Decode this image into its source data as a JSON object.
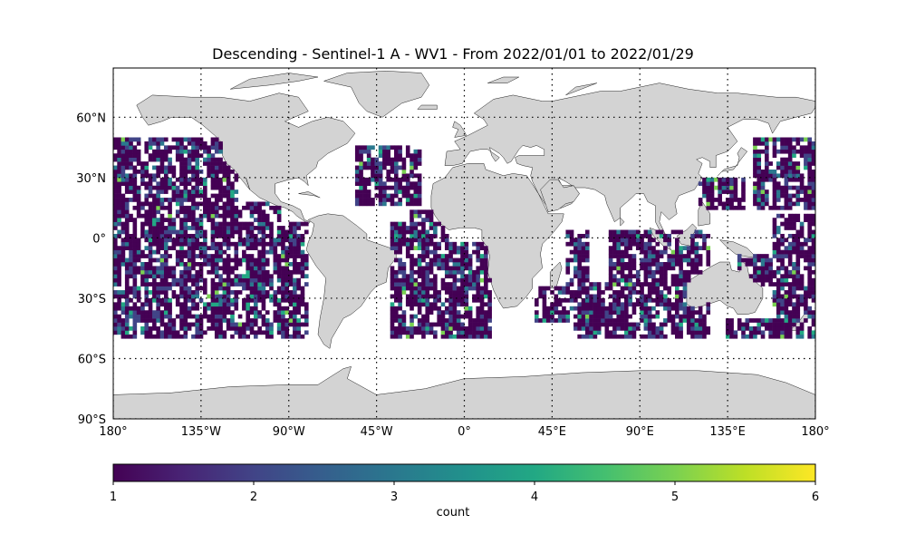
{
  "title": "Descending - Sentinel-1 A - WV1 - From 2022/01/01 to 2022/01/29",
  "map": {
    "projection": "PlateCarree",
    "lon_range": [
      -180,
      180
    ],
    "lat_range": [
      -90,
      90
    ],
    "land_color": "#d3d3d3",
    "coastline_color": "#000000",
    "gridlines": "dotted",
    "lon_ticks": [
      {
        "value": -180,
        "label": "180°"
      },
      {
        "value": -135,
        "label": "135°W"
      },
      {
        "value": -90,
        "label": "90°W"
      },
      {
        "value": -45,
        "label": "45°W"
      },
      {
        "value": 0,
        "label": "0°"
      },
      {
        "value": 45,
        "label": "45°E"
      },
      {
        "value": 90,
        "label": "90°E"
      },
      {
        "value": 135,
        "label": "135°E"
      },
      {
        "value": 180,
        "label": "180°"
      }
    ],
    "lat_ticks": [
      {
        "value": 60,
        "label": "60°N"
      },
      {
        "value": 30,
        "label": "30°N"
      },
      {
        "value": 0,
        "label": "0°"
      },
      {
        "value": -30,
        "label": "30°S"
      },
      {
        "value": -60,
        "label": "60°S"
      },
      {
        "value": -90,
        "label": "90°S"
      }
    ]
  },
  "chart_data": {
    "type": "heatmap",
    "variable": "count",
    "grid_resolution_deg": 2,
    "coverage_lat_range": [
      -50,
      50
    ],
    "value_range": [
      1,
      6
    ],
    "swath_regions_note": "Open-ocean coverage between 50°S and 50°N (Pacific, Atlantic, Indian oceans)"
  },
  "colorbar": {
    "label": "count",
    "min": 1,
    "max": 6,
    "ticks": [
      {
        "value": 1,
        "label": "1"
      },
      {
        "value": 2,
        "label": "2"
      },
      {
        "value": 3,
        "label": "3"
      },
      {
        "value": 4,
        "label": "4"
      },
      {
        "value": 5,
        "label": "5"
      },
      {
        "value": 6,
        "label": "6"
      }
    ],
    "colormap": "viridis"
  }
}
